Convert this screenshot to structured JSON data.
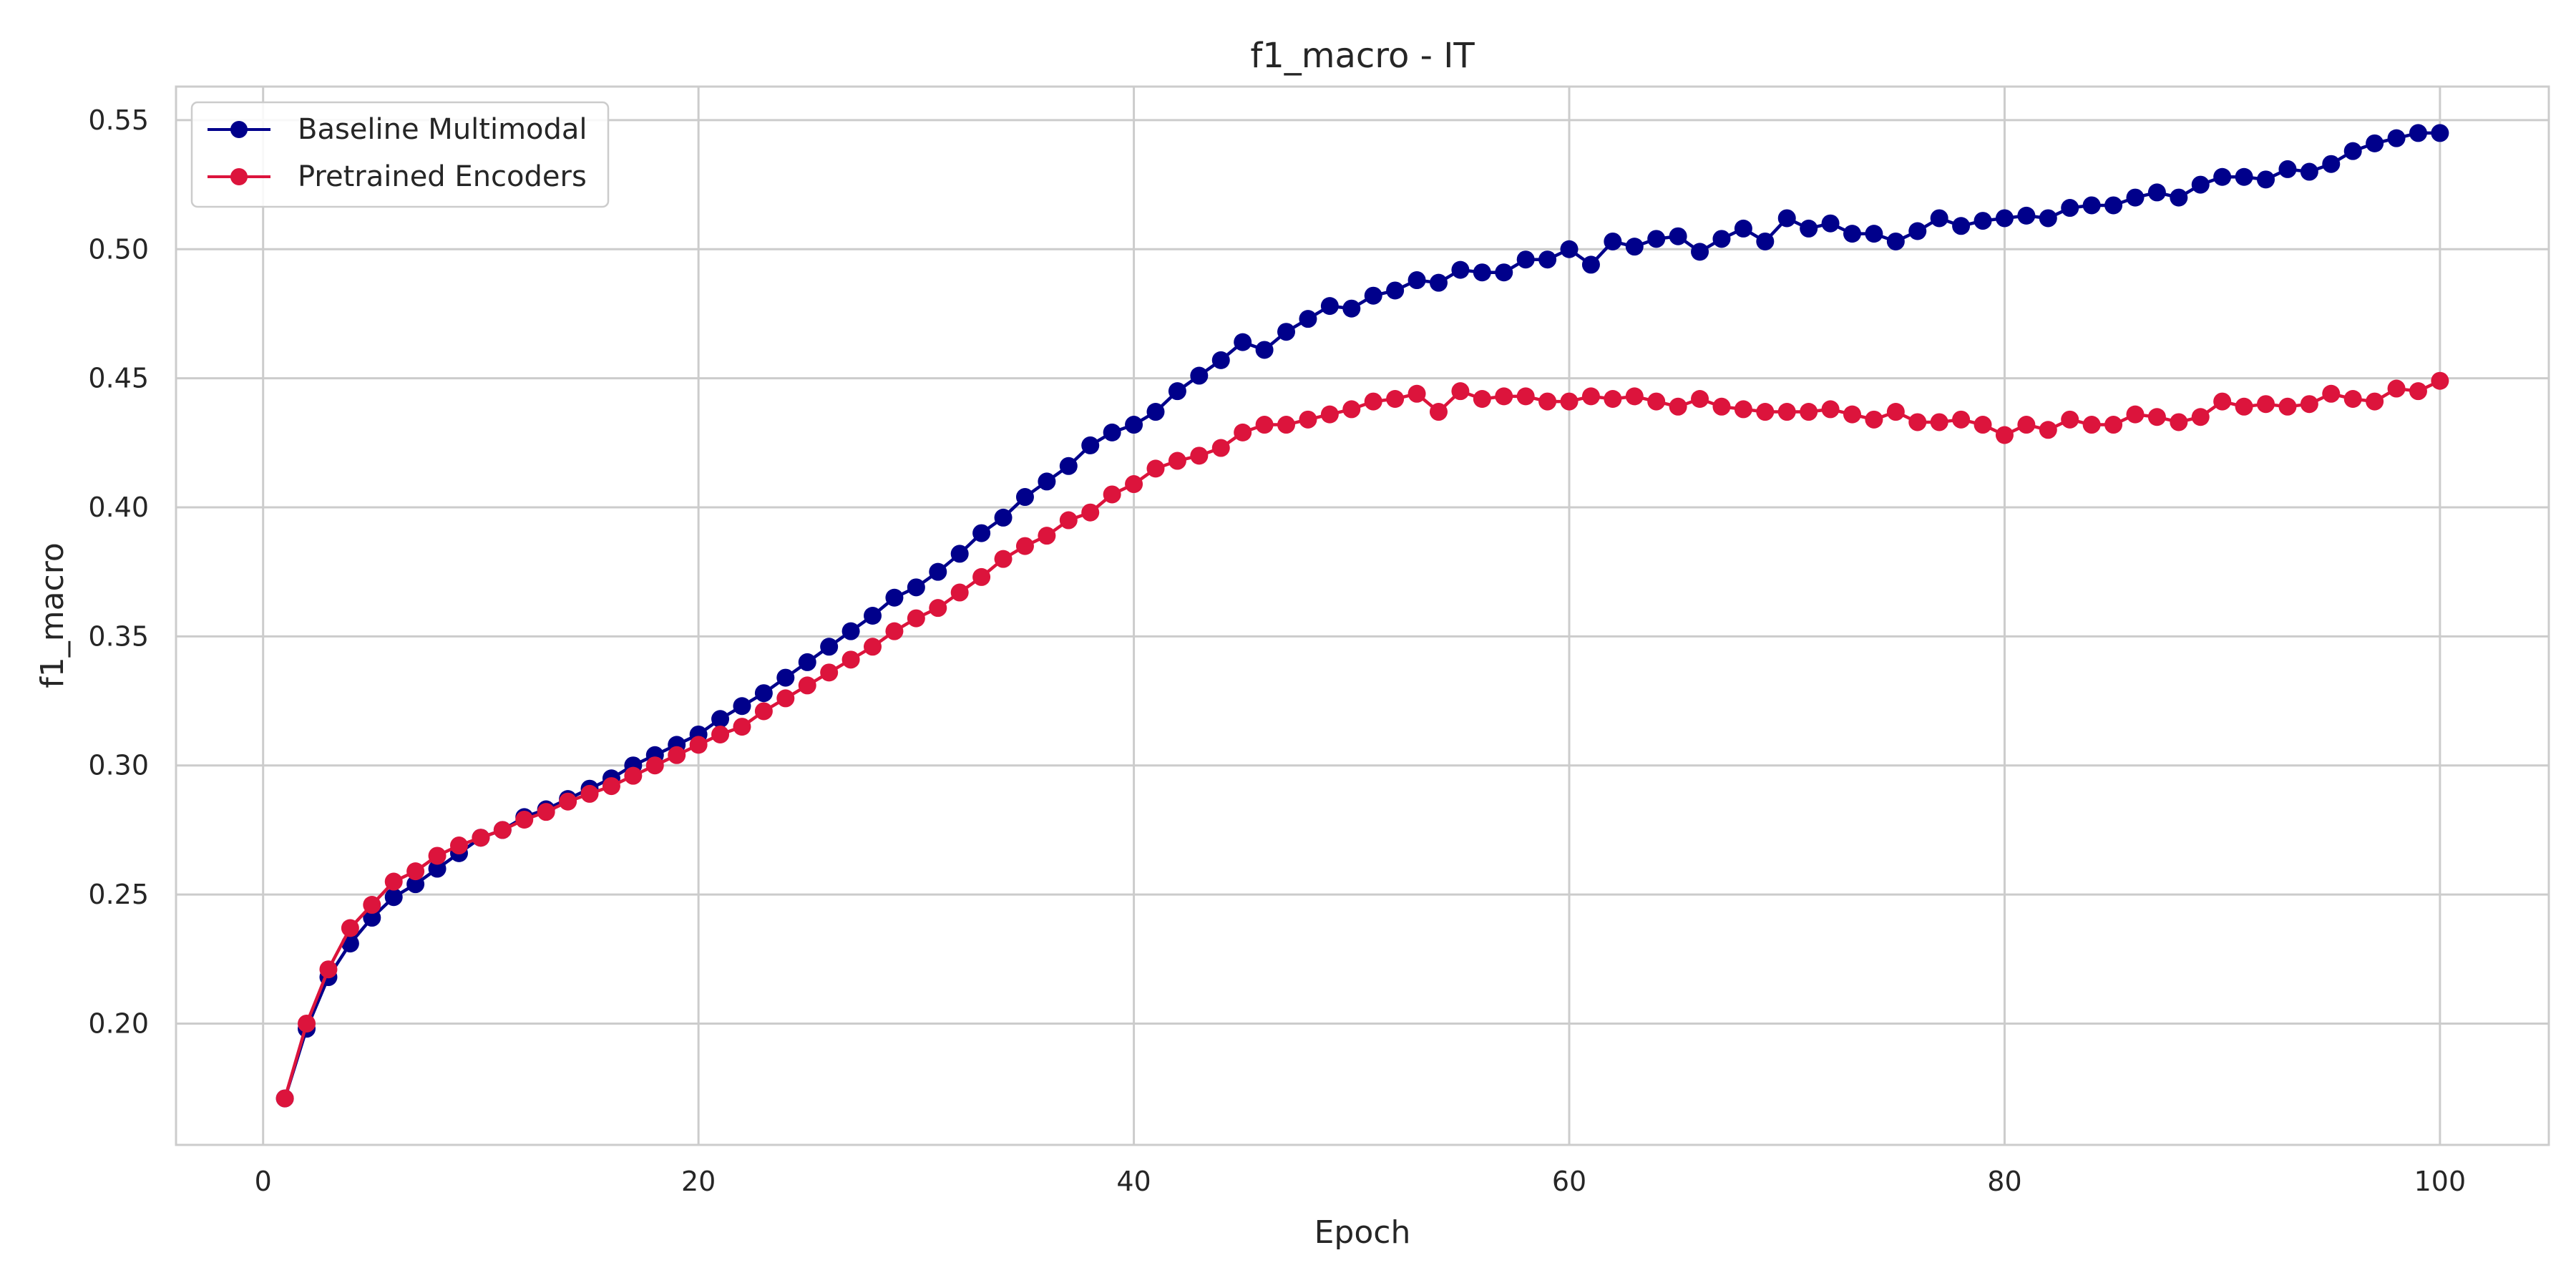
{
  "chart_data": {
    "type": "line",
    "title": "f1_macro - IT",
    "xlabel": "Epoch",
    "ylabel": "f1_macro",
    "xlim": [
      -4,
      105
    ],
    "ylim": [
      0.153,
      0.563
    ],
    "x_ticks": [
      0,
      20,
      40,
      60,
      80,
      100
    ],
    "x_tick_labels": [
      "0",
      "20",
      "40",
      "60",
      "80",
      "100"
    ],
    "y_ticks": [
      0.2,
      0.25,
      0.3,
      0.35,
      0.4,
      0.45,
      0.5,
      0.55
    ],
    "y_tick_labels": [
      "0.20",
      "0.25",
      "0.30",
      "0.35",
      "0.40",
      "0.45",
      "0.50",
      "0.55"
    ],
    "grid": true,
    "legend_position": "upper-left",
    "x": [
      1,
      2,
      3,
      4,
      5,
      6,
      7,
      8,
      9,
      10,
      11,
      12,
      13,
      14,
      15,
      16,
      17,
      18,
      19,
      20,
      21,
      22,
      23,
      24,
      25,
      26,
      27,
      28,
      29,
      30,
      31,
      32,
      33,
      34,
      35,
      36,
      37,
      38,
      39,
      40,
      41,
      42,
      43,
      44,
      45,
      46,
      47,
      48,
      49,
      50,
      51,
      52,
      53,
      54,
      55,
      56,
      57,
      58,
      59,
      60,
      61,
      62,
      63,
      64,
      65,
      66,
      67,
      68,
      69,
      70,
      71,
      72,
      73,
      74,
      75,
      76,
      77,
      78,
      79,
      80,
      81,
      82,
      83,
      84,
      85,
      86,
      87,
      88,
      89,
      90,
      91,
      92,
      93,
      94,
      95,
      96,
      97,
      98,
      99,
      100
    ],
    "series": [
      {
        "name": "Baseline Multimodal",
        "color": "#00008b",
        "values": [
          0.171,
          0.198,
          0.218,
          0.231,
          0.241,
          0.249,
          0.254,
          0.26,
          0.266,
          0.272,
          0.275,
          0.28,
          0.283,
          0.287,
          0.291,
          0.295,
          0.3,
          0.304,
          0.308,
          0.312,
          0.318,
          0.323,
          0.328,
          0.334,
          0.34,
          0.346,
          0.352,
          0.358,
          0.365,
          0.369,
          0.375,
          0.382,
          0.39,
          0.396,
          0.404,
          0.41,
          0.416,
          0.424,
          0.429,
          0.432,
          0.437,
          0.445,
          0.451,
          0.457,
          0.464,
          0.461,
          0.468,
          0.473,
          0.478,
          0.477,
          0.482,
          0.484,
          0.488,
          0.487,
          0.492,
          0.491,
          0.491,
          0.496,
          0.496,
          0.5,
          0.494,
          0.503,
          0.501,
          0.504,
          0.505,
          0.499,
          0.504,
          0.508,
          0.503,
          0.512,
          0.508,
          0.51,
          0.506,
          0.506,
          0.503,
          0.507,
          0.512,
          0.509,
          0.511,
          0.512,
          0.513,
          0.512,
          0.516,
          0.517,
          0.517,
          0.52,
          0.522,
          0.52,
          0.525,
          0.528,
          0.528,
          0.527,
          0.531,
          0.53,
          0.533,
          0.538,
          0.541,
          0.543,
          0.545,
          0.545
        ]
      },
      {
        "name": "Pretrained Encoders",
        "color": "#dc143c",
        "values": [
          0.171,
          0.2,
          0.221,
          0.237,
          0.246,
          0.255,
          0.259,
          0.265,
          0.269,
          0.272,
          0.275,
          0.279,
          0.282,
          0.286,
          0.289,
          0.292,
          0.296,
          0.3,
          0.304,
          0.308,
          0.312,
          0.315,
          0.321,
          0.326,
          0.331,
          0.336,
          0.341,
          0.346,
          0.352,
          0.357,
          0.361,
          0.367,
          0.373,
          0.38,
          0.385,
          0.389,
          0.395,
          0.398,
          0.405,
          0.409,
          0.415,
          0.418,
          0.42,
          0.423,
          0.429,
          0.432,
          0.432,
          0.434,
          0.436,
          0.438,
          0.441,
          0.442,
          0.444,
          0.437,
          0.445,
          0.442,
          0.443,
          0.443,
          0.441,
          0.441,
          0.443,
          0.442,
          0.443,
          0.441,
          0.439,
          0.442,
          0.439,
          0.438,
          0.437,
          0.437,
          0.437,
          0.438,
          0.436,
          0.434,
          0.437,
          0.433,
          0.433,
          0.434,
          0.432,
          0.428,
          0.432,
          0.43,
          0.434,
          0.432,
          0.432,
          0.436,
          0.435,
          0.433,
          0.435,
          0.441,
          0.439,
          0.44,
          0.439,
          0.44,
          0.444,
          0.442,
          0.441,
          0.446,
          0.445,
          0.449
        ]
      }
    ]
  }
}
